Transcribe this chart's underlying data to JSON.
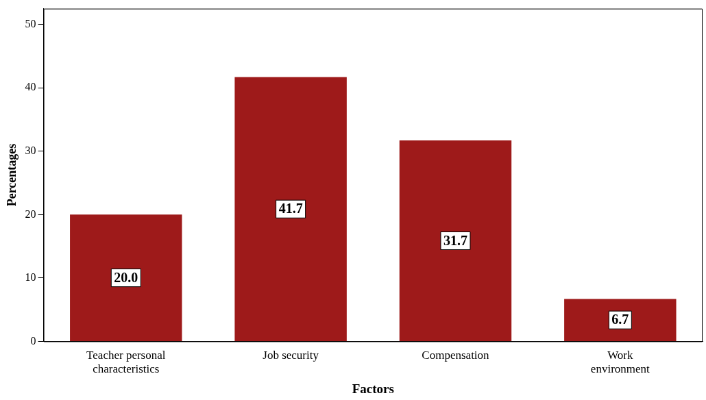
{
  "chart_data": {
    "type": "bar",
    "xlabel": "Factors",
    "ylabel": "Percentages",
    "categories": [
      "Teacher personal characteristics",
      "Job security",
      "Compensation",
      "Work environment"
    ],
    "values": [
      20.0,
      41.7,
      31.7,
      6.7
    ],
    "color": "#9e1a1a",
    "ylim": [
      0,
      52.5
    ],
    "yticks": [
      0,
      10,
      20,
      30,
      40,
      50
    ],
    "value_labels": [
      "20.0",
      "41.7",
      "31.7",
      "6.7"
    ],
    "grid": false,
    "legend": false
  }
}
